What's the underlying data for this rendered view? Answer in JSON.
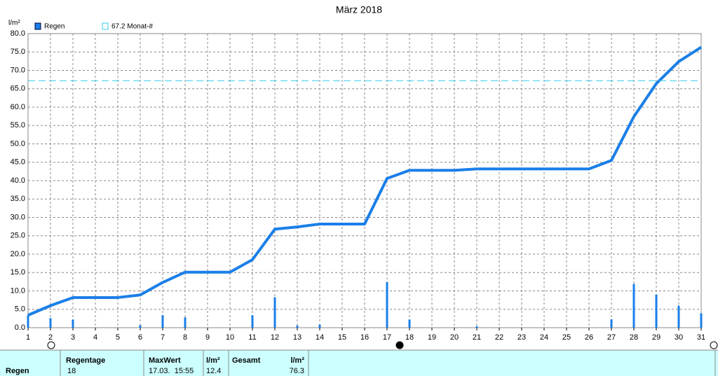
{
  "chart_data": {
    "type": "bar-line",
    "title": "März 2018",
    "y_label": "l/m²",
    "x": [
      1,
      2,
      3,
      4,
      5,
      6,
      7,
      8,
      9,
      10,
      11,
      12,
      13,
      14,
      15,
      16,
      17,
      18,
      19,
      20,
      21,
      22,
      23,
      24,
      25,
      26,
      27,
      28,
      29,
      30,
      31
    ],
    "series": [
      {
        "name": "Regen",
        "color": "#1a7fe8",
        "values": [
          3.4,
          2.6,
          2.2,
          0,
          0,
          0.7,
          3.4,
          2.8,
          0,
          0,
          3.4,
          8.3,
          0.6,
          0.8,
          0,
          0,
          12.4,
          2.2,
          0,
          0,
          0.4,
          0,
          0,
          0,
          0,
          0,
          2.3,
          11.9,
          9.0,
          6.0,
          3.9
        ]
      }
    ],
    "line_values": [
      3.4,
      6.0,
      8.2,
      8.2,
      8.2,
      8.9,
      12.3,
      15.1,
      15.1,
      15.1,
      18.5,
      26.8,
      27.4,
      28.2,
      28.2,
      28.2,
      40.6,
      42.8,
      42.8,
      42.8,
      43.2,
      43.2,
      43.2,
      43.2,
      43.2,
      43.2,
      45.5,
      57.4,
      66.4,
      72.4,
      76.3
    ],
    "reference": {
      "value": 67.2,
      "label": "67.2 Monat-#",
      "color": "#33ccee"
    },
    "xlim": [
      1,
      31
    ],
    "xticks": [
      1,
      2,
      3,
      4,
      5,
      6,
      7,
      8,
      9,
      10,
      11,
      12,
      13,
      14,
      15,
      16,
      17,
      18,
      19,
      20,
      21,
      22,
      23,
      24,
      25,
      26,
      27,
      28,
      29,
      30,
      31
    ],
    "ylim": [
      0,
      80
    ],
    "yticks": [
      {
        "value": 0,
        "label": "0.0"
      },
      {
        "value": 5,
        "label": "5.0"
      },
      {
        "value": 10,
        "label": "10.0"
      },
      {
        "value": 15,
        "label": "15.0"
      },
      {
        "value": 20,
        "label": "20.0"
      },
      {
        "value": 25,
        "label": "25.0"
      },
      {
        "value": 30,
        "label": "30.0"
      },
      {
        "value": 35,
        "label": "35.0"
      },
      {
        "value": 40,
        "label": "40.0"
      },
      {
        "value": 45,
        "label": "45.0"
      },
      {
        "value": 50,
        "label": "50.0"
      },
      {
        "value": 55,
        "label": "55.0"
      },
      {
        "value": 60,
        "label": "60.0"
      },
      {
        "value": 65,
        "label": "65.0"
      },
      {
        "value": 70,
        "label": "70.0"
      },
      {
        "value": 75,
        "label": "75.0"
      },
      {
        "value": 80,
        "label": "80.0"
      }
    ],
    "grid": true
  },
  "table": {
    "row_label": "Regen",
    "columns": [
      {
        "header": "Regentage",
        "value": "18"
      },
      {
        "header": "MaxWert",
        "value": "17.03.  15:55"
      },
      {
        "header": "l/m²",
        "value": "12.4"
      },
      {
        "header": "Gesamt"
      },
      {
        "header": "l/m²",
        "value": "76.3"
      }
    ]
  }
}
